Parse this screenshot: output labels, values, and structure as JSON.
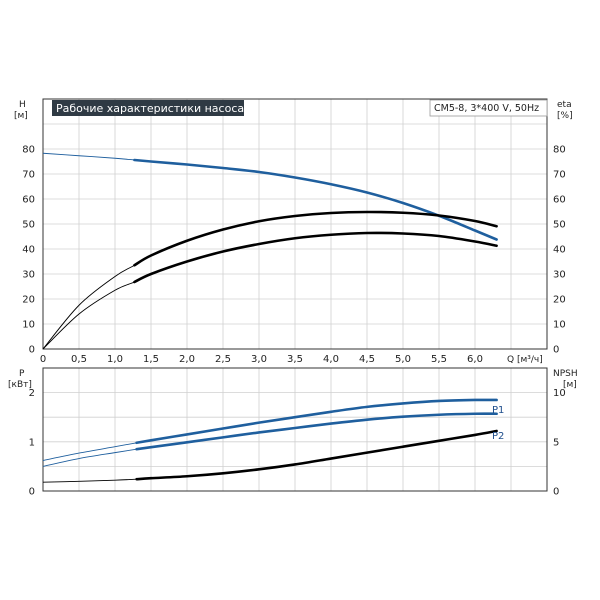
{
  "chart_data": [
    {
      "type": "line",
      "title": "Рабочие характеристики насоса",
      "subtitle": "CM5-8, 3*400 V, 50Hz",
      "ylabel_left": "H",
      "ylabel_left_unit": "[м]",
      "ylabel_right": "eta",
      "ylabel_right_unit": "[%]",
      "xlabel": "Q [м³/ч]",
      "xlim": [
        0,
        7
      ],
      "ylim": [
        0,
        100
      ],
      "x_ticks": [
        "0",
        "0,5",
        "1,0",
        "1,5",
        "2,0",
        "2,5",
        "3,0",
        "3,5",
        "4,0",
        "4,5",
        "5,0",
        "5,5",
        "6,0"
      ],
      "y_ticks": [
        "0",
        "10",
        "20",
        "30",
        "40",
        "50",
        "60",
        "70",
        "80"
      ],
      "grid": true,
      "series": [
        {
          "color": "#1f5f9e",
          "x": [
            0,
            0.5,
            1.0,
            1.27,
            1.5,
            2.0,
            2.5,
            3.0,
            3.5,
            4.0,
            4.5,
            5.0,
            5.5,
            6.0,
            6.3
          ],
          "y": [
            78.3,
            77.3,
            76.3,
            75.6,
            75.0,
            73.8,
            72.4,
            70.8,
            68.6,
            65.9,
            62.6,
            58.4,
            53.3,
            47.4,
            43.8
          ]
        },
        {
          "color": "#000000",
          "x": [
            0,
            0.5,
            1.0,
            1.27,
            1.5,
            2.0,
            2.5,
            3.0,
            3.5,
            4.0,
            4.5,
            5.0,
            5.5,
            6.0,
            6.3
          ],
          "y": [
            0,
            17.5,
            29.0,
            33.5,
            37.4,
            43.3,
            47.8,
            51.1,
            53.2,
            54.4,
            54.8,
            54.5,
            53.4,
            51.2,
            49.1
          ]
        },
        {
          "color": "#000000",
          "x": [
            0,
            0.5,
            1.0,
            1.27,
            1.5,
            2.0,
            2.5,
            3.0,
            3.5,
            4.0,
            4.5,
            5.0,
            5.5,
            6.0,
            6.3
          ],
          "y": [
            0,
            14.0,
            23.5,
            26.8,
            30.0,
            35.0,
            39.0,
            42.0,
            44.3,
            45.7,
            46.4,
            46.2,
            45.2,
            43.0,
            41.3
          ]
        }
      ]
    },
    {
      "type": "line",
      "ylabel_left": "P",
      "ylabel_left_unit": "[кВт]",
      "ylabel_right": "NPSH",
      "ylabel_right_unit": "[м]",
      "xlim": [
        0,
        7
      ],
      "ylim_left": [
        0,
        2.5
      ],
      "ylim_right": [
        0,
        12.5
      ],
      "y_ticks_left": [
        "0",
        "1",
        "2"
      ],
      "y_ticks_right": [
        "0",
        "5",
        "10"
      ],
      "grid": true,
      "series": [
        {
          "name": "P1",
          "color": "#1f5f9e",
          "x": [
            0,
            0.5,
            1.0,
            1.3,
            1.5,
            2.0,
            2.5,
            3.0,
            3.5,
            4.0,
            4.5,
            5.0,
            5.5,
            6.0,
            6.3
          ],
          "y": [
            0.62,
            0.77,
            0.9,
            0.98,
            1.03,
            1.15,
            1.27,
            1.39,
            1.5,
            1.61,
            1.71,
            1.78,
            1.83,
            1.85,
            1.85
          ]
        },
        {
          "name": "P2",
          "color": "#1f5f9e",
          "x": [
            0,
            0.5,
            1.0,
            1.3,
            1.5,
            2.0,
            2.5,
            3.0,
            3.5,
            4.0,
            4.5,
            5.0,
            5.5,
            6.0,
            6.3
          ],
          "y": [
            0.5,
            0.66,
            0.78,
            0.85,
            0.89,
            0.99,
            1.09,
            1.19,
            1.28,
            1.37,
            1.45,
            1.51,
            1.55,
            1.57,
            1.57
          ]
        },
        {
          "color": "#000000",
          "x": [
            0,
            0.5,
            1.0,
            1.3,
            1.5,
            2.0,
            2.5,
            3.0,
            3.5,
            4.0,
            4.5,
            5.0,
            5.5,
            6.0,
            6.3
          ],
          "y": [
            0.9,
            0.98,
            1.1,
            1.2,
            1.3,
            1.5,
            1.8,
            2.2,
            2.7,
            3.3,
            3.9,
            4.5,
            5.1,
            5.7,
            6.1
          ]
        }
      ]
    }
  ]
}
